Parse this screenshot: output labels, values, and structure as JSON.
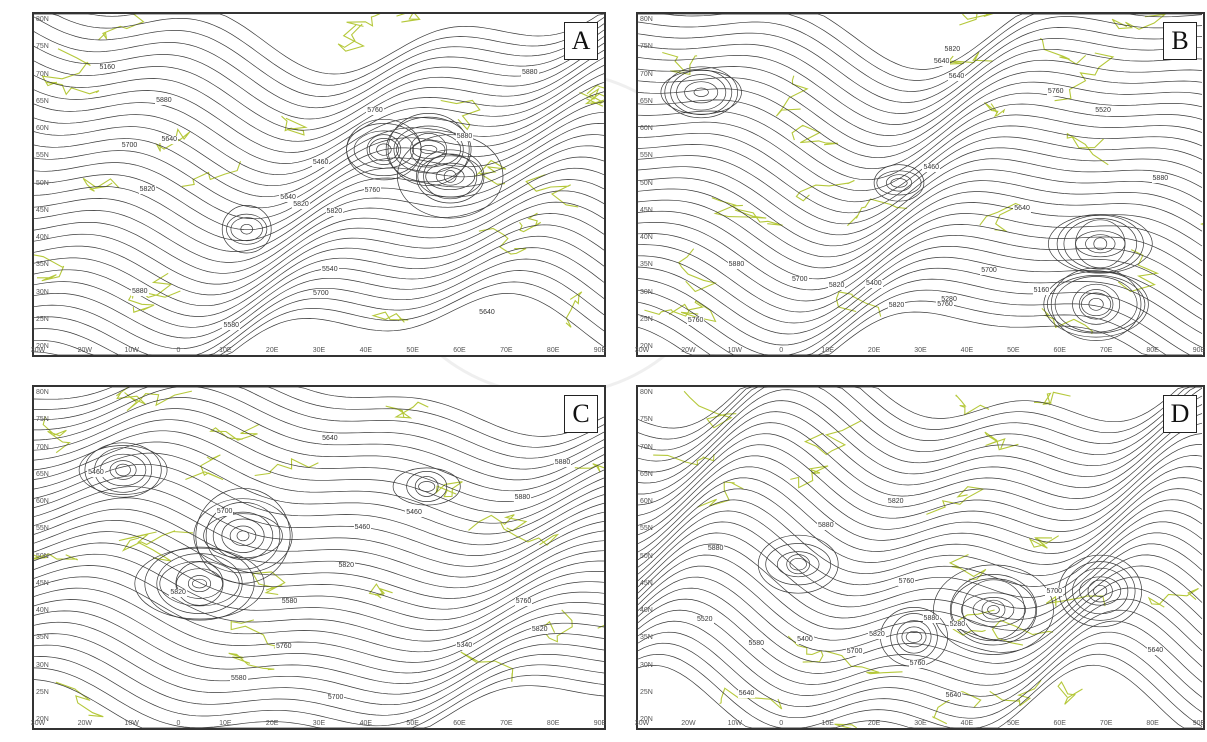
{
  "panels": [
    {
      "label": "A",
      "lat_ticks": [
        "80N",
        "75N",
        "70N",
        "65N",
        "60N",
        "55N",
        "50N",
        "45N",
        "40N",
        "35N",
        "30N",
        "25N",
        "20N"
      ],
      "lon_ticks": [
        "30W",
        "20W",
        "10W",
        "0",
        "10E",
        "20E",
        "30E",
        "40E",
        "50E",
        "60E",
        "70E",
        "80E",
        "90E"
      ],
      "contour_labels": [
        "5160",
        "5460",
        "5580",
        "5700",
        "5640",
        "5760",
        "5820",
        "5880",
        "5820",
        "5700",
        "5880",
        "5640",
        "5540",
        "5880",
        "5880",
        "5820",
        "5640",
        "5760"
      ]
    },
    {
      "label": "B",
      "lat_ticks": [
        "80N",
        "75N",
        "70N",
        "65N",
        "60N",
        "55N",
        "50N",
        "45N",
        "40N",
        "35N",
        "30N",
        "25N",
        "20N"
      ],
      "lon_ticks": [
        "30W",
        "20W",
        "10W",
        "0",
        "10E",
        "20E",
        "30E",
        "40E",
        "50E",
        "60E",
        "70E",
        "80E",
        "90E"
      ],
      "contour_labels": [
        "5160",
        "5280",
        "5400",
        "5520",
        "5640",
        "5760",
        "5880",
        "5760",
        "5640",
        "5820",
        "5700",
        "5460",
        "5760",
        "5820",
        "5640",
        "5700",
        "5820",
        "5880"
      ]
    },
    {
      "label": "C",
      "lat_ticks": [
        "80N",
        "75N",
        "70N",
        "65N",
        "60N",
        "55N",
        "50N",
        "45N",
        "40N",
        "35N",
        "30N",
        "25N",
        "20N"
      ],
      "lon_ticks": [
        "30W",
        "20W",
        "10W",
        "0",
        "10E",
        "20E",
        "30E",
        "40E",
        "50E",
        "60E",
        "70E",
        "80E",
        "90E"
      ],
      "contour_labels": [
        "5340",
        "5460",
        "5580",
        "5700",
        "5760",
        "5820",
        "5460",
        "5880",
        "5820",
        "5700",
        "5640",
        "5760",
        "5880",
        "5820",
        "5580",
        "5460"
      ]
    },
    {
      "label": "D",
      "lat_ticks": [
        "80N",
        "75N",
        "70N",
        "65N",
        "60N",
        "55N",
        "50N",
        "45N",
        "40N",
        "35N",
        "30N",
        "25N",
        "20N"
      ],
      "lon_ticks": [
        "30W",
        "20W",
        "10W",
        "0",
        "10E",
        "20E",
        "30E",
        "40E",
        "50E",
        "60E",
        "70E",
        "80E",
        "90E"
      ],
      "contour_labels": [
        "5280",
        "5400",
        "5520",
        "5640",
        "5700",
        "5760",
        "5880",
        "5820",
        "5580",
        "5640",
        "5760",
        "5700",
        "5880",
        "5880",
        "5820",
        "5640"
      ]
    }
  ],
  "colors": {
    "contour": "#3a3a3a",
    "coastline": "#b5c83a",
    "frame": "#333333",
    "label_bg": "#ffffff"
  }
}
